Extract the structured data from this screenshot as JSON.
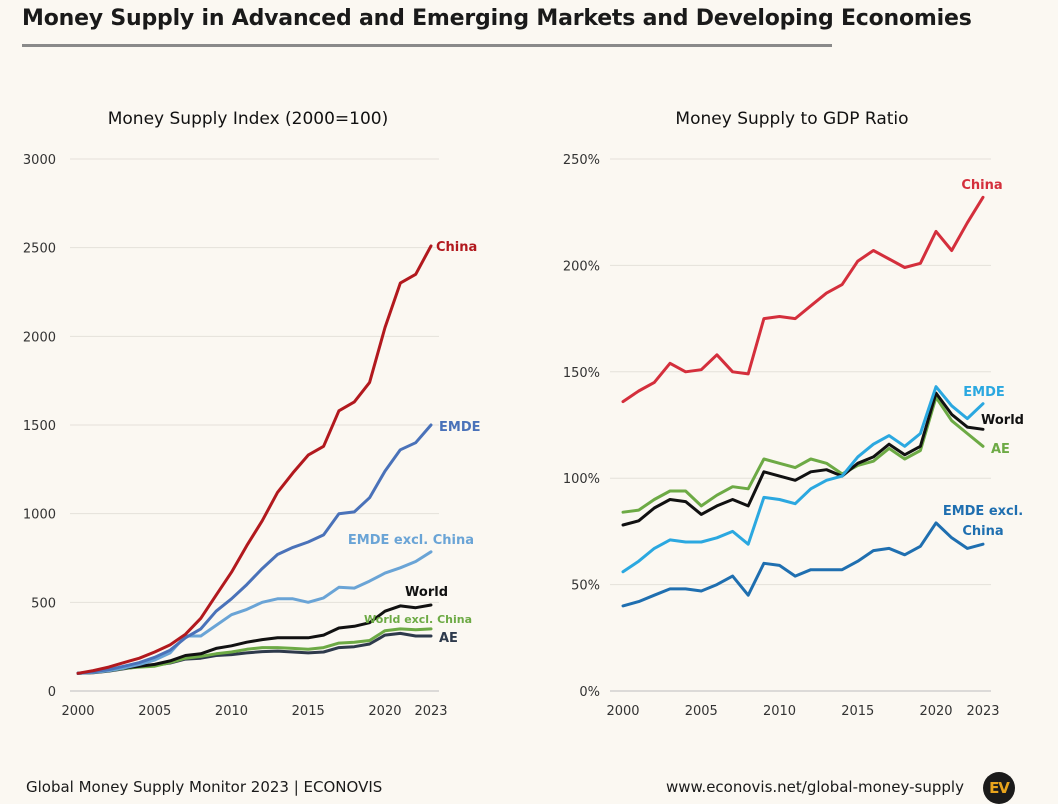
{
  "title": "Money Supply in Advanced and Emerging Markets and Developing Economies",
  "footer": {
    "source": "Global Money Supply Monitor 2023 | ECONOVIS",
    "url": "www.econovis.net/global-money-supply",
    "logo_text": "EV"
  },
  "chart_data": [
    {
      "type": "line",
      "title": "Money Supply Index (2000=100)",
      "xlabel": "",
      "ylabel": "",
      "xlim": [
        2000,
        2023
      ],
      "ylim": [
        0,
        3000
      ],
      "yticks": [
        0,
        500,
        1000,
        1500,
        2000,
        2500,
        3000
      ],
      "ytick_labels": [
        "0",
        "500",
        "1000",
        "1500",
        "2000",
        "2500",
        "3000"
      ],
      "xticks": [
        2000,
        2005,
        2010,
        2015,
        2020,
        2023
      ],
      "xtick_labels": [
        "2000",
        "2005",
        "2010",
        "2015",
        "2020",
        "2023"
      ],
      "grid": true,
      "legend": "inline labels at line ends",
      "x": [
        2000,
        2001,
        2002,
        2003,
        2004,
        2005,
        2006,
        2007,
        2008,
        2009,
        2010,
        2011,
        2012,
        2013,
        2014,
        2015,
        2016,
        2017,
        2018,
        2019,
        2020,
        2021,
        2022,
        2023
      ],
      "series": [
        {
          "name": "China",
          "color": "#b2191e",
          "bold": true,
          "values": [
            100,
            115,
            135,
            160,
            185,
            220,
            260,
            320,
            410,
            540,
            670,
            820,
            960,
            1120,
            1230,
            1330,
            1380,
            1580,
            1630,
            1740,
            2050,
            2300,
            2350,
            2510
          ]
        },
        {
          "name": "EMDE",
          "color": "#4a72b9",
          "bold": true,
          "values": [
            100,
            108,
            120,
            140,
            160,
            190,
            230,
            300,
            350,
            450,
            520,
            600,
            690,
            770,
            810,
            840,
            880,
            1000,
            1010,
            1090,
            1240,
            1360,
            1400,
            1500
          ]
        },
        {
          "name": "EMDE excl. China",
          "color": "#6aa4d6",
          "bold": false,
          "values": [
            100,
            105,
            115,
            130,
            150,
            175,
            215,
            310,
            310,
            370,
            430,
            460,
            500,
            520,
            520,
            500,
            525,
            585,
            580,
            620,
            665,
            695,
            730,
            785
          ]
        },
        {
          "name": "World",
          "color": "#111111",
          "bold": false,
          "values": [
            100,
            105,
            118,
            130,
            140,
            150,
            170,
            200,
            210,
            240,
            255,
            275,
            290,
            300,
            300,
            300,
            315,
            355,
            365,
            385,
            450,
            480,
            470,
            485
          ]
        },
        {
          "name": "World excl. China",
          "color": "#6daa45",
          "bold": false,
          "values": [
            100,
            105,
            115,
            128,
            135,
            140,
            160,
            185,
            195,
            210,
            220,
            235,
            245,
            245,
            240,
            235,
            245,
            270,
            275,
            285,
            340,
            350,
            345,
            350
          ]
        },
        {
          "name": "AE",
          "color": "#2e3a4c",
          "bold": true,
          "values": [
            100,
            103,
            112,
            125,
            138,
            145,
            158,
            180,
            185,
            200,
            205,
            215,
            222,
            225,
            220,
            215,
            220,
            245,
            250,
            265,
            315,
            325,
            310,
            310
          ]
        }
      ]
    },
    {
      "type": "line",
      "title": "Money Supply to GDP Ratio",
      "xlabel": "",
      "ylabel": "",
      "xlim": [
        2000,
        2023
      ],
      "ylim": [
        0,
        250
      ],
      "yticks": [
        0,
        50,
        100,
        150,
        200,
        250
      ],
      "ytick_labels": [
        "0%",
        "50%",
        "100%",
        "150%",
        "200%",
        "250%"
      ],
      "xticks": [
        2000,
        2005,
        2010,
        2015,
        2020,
        2023
      ],
      "xtick_labels": [
        "2000",
        "2005",
        "2010",
        "2015",
        "2020",
        "2023"
      ],
      "grid": true,
      "legend": "inline labels at line ends",
      "x": [
        2000,
        2001,
        2002,
        2003,
        2004,
        2005,
        2006,
        2007,
        2008,
        2009,
        2010,
        2011,
        2012,
        2013,
        2014,
        2015,
        2016,
        2017,
        2018,
        2019,
        2020,
        2021,
        2022,
        2023
      ],
      "series": [
        {
          "name": "China",
          "color": "#d42f3c",
          "bold": true,
          "values": [
            136,
            141,
            145,
            154,
            150,
            151,
            158,
            150,
            149,
            175,
            176,
            175,
            181,
            187,
            191,
            202,
            207,
            203,
            199,
            201,
            216,
            207,
            220,
            232
          ]
        },
        {
          "name": "EMDE",
          "color": "#2ba8e0",
          "bold": true,
          "values": [
            56,
            61,
            67,
            71,
            70,
            70,
            72,
            75,
            69,
            91,
            90,
            88,
            95,
            99,
            101,
            110,
            116,
            120,
            115,
            121,
            143,
            134,
            128,
            135
          ]
        },
        {
          "name": "World",
          "color": "#111111",
          "bold": true,
          "values": [
            78,
            80,
            86,
            90,
            89,
            83,
            87,
            90,
            87,
            103,
            101,
            99,
            103,
            104,
            101,
            107,
            110,
            116,
            111,
            115,
            140,
            130,
            124,
            123
          ]
        },
        {
          "name": "AE",
          "color": "#6daa45",
          "bold": true,
          "values": [
            84,
            85,
            90,
            94,
            94,
            87,
            92,
            96,
            95,
            109,
            107,
            105,
            109,
            107,
            102,
            106,
            108,
            114,
            109,
            113,
            138,
            127,
            121,
            115
          ]
        },
        {
          "name": "EMDE excl. China",
          "color": "#1f6fb0",
          "bold": true,
          "values": [
            40,
            42,
            45,
            48,
            48,
            47,
            50,
            54,
            45,
            60,
            59,
            54,
            57,
            57,
            57,
            61,
            66,
            67,
            64,
            68,
            79,
            72,
            67,
            69
          ]
        }
      ]
    }
  ]
}
